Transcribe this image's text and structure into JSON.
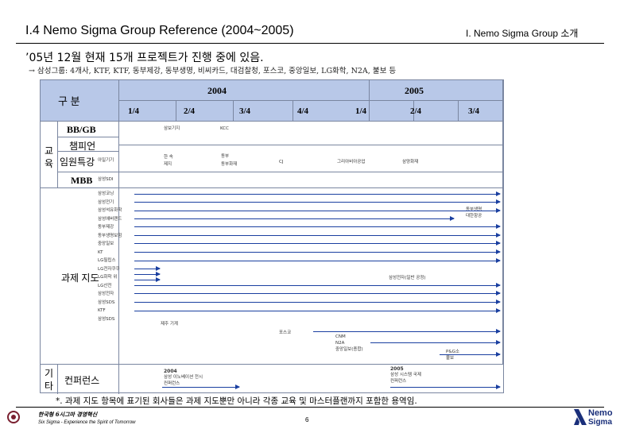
{
  "header": {
    "title": "I.4 Nemo Sigma Group  Reference (2004~2005)",
    "section": "I. Nemo Sigma Group 소개"
  },
  "headline": "’05년 12월 현재 15개 프로젝트가 진행 중에 있음.",
  "note": "→ 삼성그룹: 4개사, KTF, KTF, 동부제강, 동부생명, 비씨카드, 대검찰청, 포스코, 중앙일보, LG화학, N2A, 불보 등",
  "table": {
    "corner_label": "구 분",
    "years": [
      "2004",
      "2005"
    ],
    "quarters": [
      "1/4",
      "2/4",
      "3/4",
      "4/4",
      "1/4",
      "2/4",
      "3/4"
    ],
    "groups": {
      "edu_top": "교",
      "edu_bottom": "육",
      "etc_top": "기",
      "etc_bottom": "타"
    },
    "rows": {
      "bbgb": "BB/GB",
      "champion": "챔피언",
      "exec": "임원특강",
      "mbb": "MBB",
      "coaching": "과제 지도",
      "conference": "컨퍼런스"
    },
    "cell_texts": {
      "bbgb_a": "삼보기지",
      "bbgb_b": "KCC",
      "champ_a": "아일기기",
      "champ_b1": "한 속",
      "champ_b2": "제지",
      "champ_c1": "동부",
      "champ_c2": "동부화재",
      "champ_d": "CJ",
      "champ_e": "그리아비아공업",
      "champ_f": "삼양화재",
      "mbb_a": "삼성SDI",
      "coach_list": [
        "삼성코닝",
        "삼성전기",
        "삼성석유화학",
        "삼성에버랜드",
        "동부제강",
        "동부생명보험",
        "중앙일보",
        "KT",
        "LG필립스",
        "LG전자쿠쿠",
        "LG화학 위",
        "LG산전",
        "삼성전자",
        "삼성SDS",
        "KTF",
        "삼성SDS"
      ],
      "coach_right_a1": "동부생명",
      "coach_right_a2": "대한항공",
      "coach_right_b": "삼성전자(일반 공정)",
      "coach_single": "제주 기계",
      "posco": "포스코",
      "cnm": "CNM",
      "n2a": "N2A",
      "joongang": "중앙일보(종합)",
      "pg": "P&G소",
      "pg2": "불보",
      "conf_2004": "2004",
      "conf_2004_desc1": "삼성 이노베이션 전시",
      "conf_2004_desc2": "컨퍼런스",
      "conf_2005": "2005",
      "conf_2005_desc1": "삼성 시스템 국제",
      "conf_2005_desc2": "컨퍼런스"
    }
  },
  "footnote": "*. 과제 지도 항목에 표기된 회사들은 과제 지도뿐만 아니라 각종 교육 및 마스터플랜까지 포함한 용역임.",
  "footer": {
    "slogan": "한국형 6시그마 경영혁신",
    "sub": "Six Sigma - Experience the Spirit of Tomorrow",
    "page": "6",
    "logo_text": "Nemo",
    "logo_text2": "Sigma"
  },
  "colors": {
    "header_fill": "#b8c8e8",
    "grid": "#7a86a0",
    "arrow": "#1a3fa0"
  }
}
